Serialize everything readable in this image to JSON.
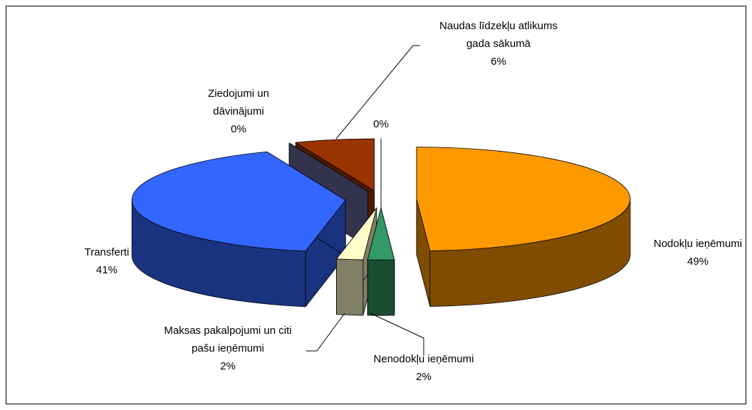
{
  "chart_data": {
    "type": "pie3d",
    "categories": [
      "Nodokļu ieņēmumi",
      "Nenodokļu ieņēmumi",
      "Maksas pakalpojumi un citi pašu ieņēmumi",
      "Transferti",
      "Ziedojumi un dāvinājumi",
      "Naudas līdzekļu atlikums gada sākumā",
      null
    ],
    "values": [
      49,
      2,
      2,
      41,
      0,
      6,
      0
    ],
    "value_labels": [
      "49%",
      "2%",
      "2%",
      "41%",
      "0%",
      "6%",
      "0%"
    ],
    "colors": [
      "#FF9900",
      "#339966",
      "#FFFFCC",
      "#3366FF",
      "#666699",
      "#993300",
      "#FFFFFF"
    ]
  }
}
